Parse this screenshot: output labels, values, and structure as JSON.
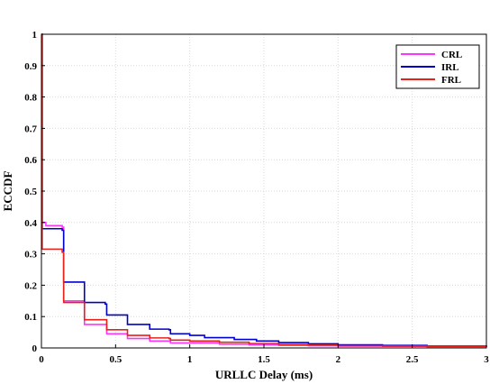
{
  "chart_data": {
    "type": "line",
    "xlabel": "URLLC Delay (ms)",
    "ylabel": "ECCDF",
    "xlim": [
      0,
      3
    ],
    "ylim": [
      0,
      1
    ],
    "x_ticks": [
      "0",
      "0.5",
      "1",
      "1.5",
      "2",
      "2.5",
      "3"
    ],
    "y_ticks": [
      "0",
      "0.1",
      "0.2",
      "0.3",
      "0.4",
      "0.5",
      "0.6",
      "0.7",
      "0.8",
      "0.9",
      "1"
    ],
    "x_tick_values": [
      0,
      0.5,
      1,
      1.5,
      2,
      2.5,
      3
    ],
    "y_tick_values": [
      0,
      0.1,
      0.2,
      0.3,
      0.4,
      0.5,
      0.6,
      0.7,
      0.8,
      0.9,
      1
    ],
    "grid": true,
    "legend_position": "top-right",
    "series": [
      {
        "name": "CRL",
        "color": "#ff33ff",
        "step": true,
        "points": [
          [
            0,
            1
          ],
          [
            0.005,
            0.4
          ],
          [
            0.03,
            0.39
          ],
          [
            0.14,
            0.385
          ],
          [
            0.15,
            0.15
          ],
          [
            0.28,
            0.15
          ],
          [
            0.29,
            0.075
          ],
          [
            0.43,
            0.075
          ],
          [
            0.44,
            0.045
          ],
          [
            0.57,
            0.045
          ],
          [
            0.58,
            0.03
          ],
          [
            0.72,
            0.03
          ],
          [
            0.73,
            0.022
          ],
          [
            0.86,
            0.022
          ],
          [
            0.87,
            0.016
          ],
          [
            1.0,
            0.016
          ],
          [
            1.2,
            0.012
          ],
          [
            1.4,
            0.01
          ],
          [
            1.6,
            0.008
          ],
          [
            1.8,
            0.007
          ],
          [
            2.0,
            0.006
          ],
          [
            2.3,
            0.005
          ],
          [
            2.6,
            0.004
          ],
          [
            3.0,
            0.003
          ]
        ]
      },
      {
        "name": "IRL",
        "color": "#0000cc",
        "step": true,
        "points": [
          [
            0,
            1
          ],
          [
            0.005,
            0.38
          ],
          [
            0.14,
            0.375
          ],
          [
            0.15,
            0.21
          ],
          [
            0.28,
            0.21
          ],
          [
            0.29,
            0.145
          ],
          [
            0.43,
            0.14
          ],
          [
            0.44,
            0.105
          ],
          [
            0.57,
            0.105
          ],
          [
            0.58,
            0.075
          ],
          [
            0.72,
            0.075
          ],
          [
            0.73,
            0.06
          ],
          [
            0.86,
            0.058
          ],
          [
            0.87,
            0.045
          ],
          [
            1.0,
            0.04
          ],
          [
            1.1,
            0.033
          ],
          [
            1.3,
            0.027
          ],
          [
            1.45,
            0.022
          ],
          [
            1.6,
            0.017
          ],
          [
            1.8,
            0.013
          ],
          [
            2.0,
            0.01
          ],
          [
            2.3,
            0.008
          ],
          [
            2.6,
            0.006
          ],
          [
            3.0,
            0.005
          ]
        ]
      },
      {
        "name": "FRL",
        "color": "#e8201a",
        "step": true,
        "points": [
          [
            0,
            1
          ],
          [
            0.005,
            0.315
          ],
          [
            0.14,
            0.305
          ],
          [
            0.15,
            0.145
          ],
          [
            0.28,
            0.145
          ],
          [
            0.29,
            0.09
          ],
          [
            0.43,
            0.09
          ],
          [
            0.44,
            0.058
          ],
          [
            0.57,
            0.058
          ],
          [
            0.58,
            0.04
          ],
          [
            0.72,
            0.04
          ],
          [
            0.73,
            0.032
          ],
          [
            0.86,
            0.03
          ],
          [
            0.87,
            0.025
          ],
          [
            1.0,
            0.022
          ],
          [
            1.2,
            0.018
          ],
          [
            1.4,
            0.014
          ],
          [
            1.6,
            0.011
          ],
          [
            1.8,
            0.009
          ],
          [
            2.0,
            0.007
          ],
          [
            2.3,
            0.006
          ],
          [
            2.6,
            0.005
          ],
          [
            3.0,
            0.004
          ]
        ]
      }
    ]
  }
}
